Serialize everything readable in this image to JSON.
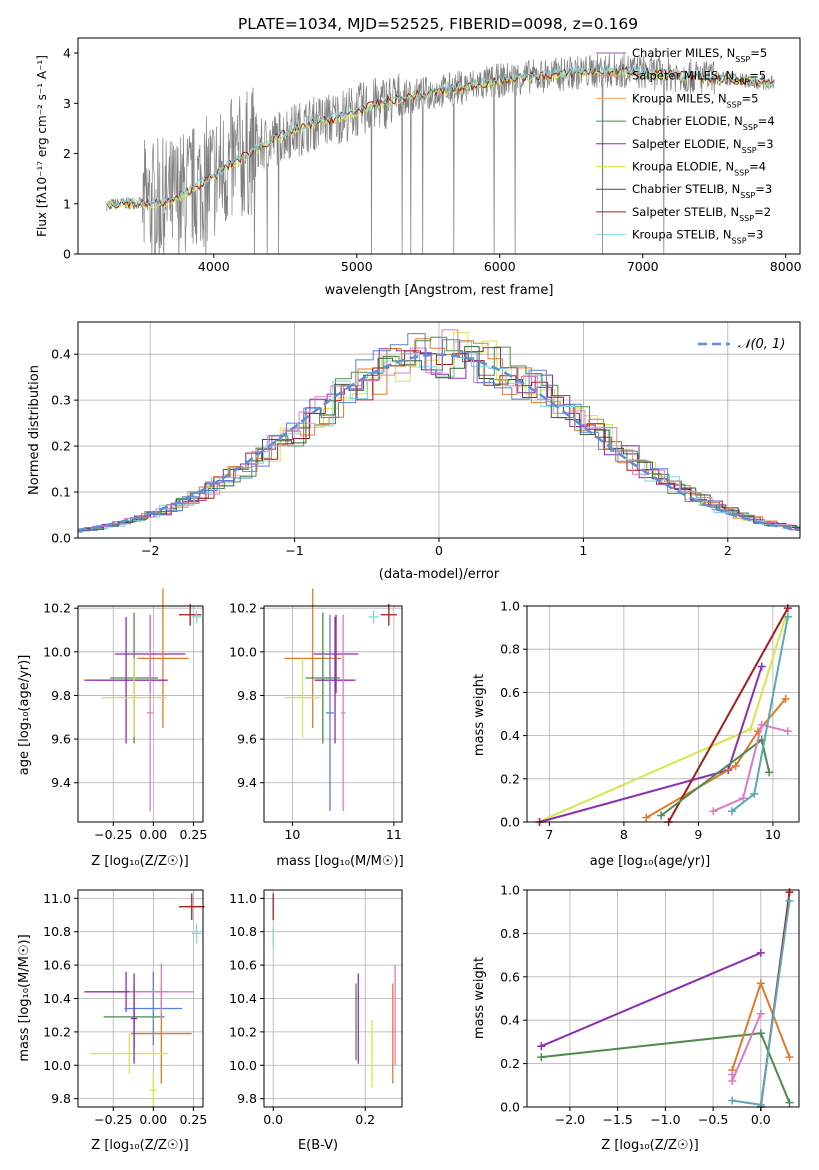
{
  "title": "PLATE=1034, MJD=52525, FIBERID=0098, z=0.169",
  "colors": {
    "chabrier_miles": "#9b59b6",
    "salpeter_miles": "#f08a4b",
    "kroupa_miles": "#f0a060",
    "chabrier_elodie": "#4e8b4e",
    "salpeter_elodie": "#8e2db0",
    "kroupa_elodie": "#d7e64a",
    "chabrier_stelib": "#3a5a3a",
    "salpeter_stelib": "#a31d1d",
    "kroupa_stelib": "#7fd6de",
    "data": "#808080",
    "normal": "#5b8fd9",
    "orange": "#e07b2e",
    "pink": "#e07bc0",
    "blue": "#5b7fd6",
    "teal": "#5aa8b8"
  },
  "spectrum": {
    "xlabel": "wavelength [Angstrom, rest frame]",
    "ylabel": "Flux [fλ10⁻¹⁷ erg cm⁻² s⁻¹ A⁻¹]",
    "xticks": [
      "4000",
      "5000",
      "6000",
      "7000",
      "8000"
    ],
    "yticks": [
      "0",
      "1",
      "2",
      "3",
      "4"
    ],
    "legend": [
      {
        "label": "Chabrier MILES, N",
        "sub": "SSP",
        "tail": "=5",
        "color": "#9b59b6"
      },
      {
        "label": "Salpeter MILES, N",
        "sub": "SSP",
        "tail": "=5",
        "color": "#f08a4b"
      },
      {
        "label": "Kroupa MILES, N",
        "sub": "SSP",
        "tail": "=5",
        "color": "#f0a060"
      },
      {
        "label": "Chabrier ELODIE, N",
        "sub": "SSP",
        "tail": "=4",
        "color": "#4e8b4e"
      },
      {
        "label": "Salpeter ELODIE, N",
        "sub": "SSP",
        "tail": "=3",
        "color": "#8e2db0"
      },
      {
        "label": "Kroupa ELODIE, N",
        "sub": "SSP",
        "tail": "=4",
        "color": "#d7e64a"
      },
      {
        "label": "Chabrier STELIB, N",
        "sub": "SSP",
        "tail": "=3",
        "color": "#3a5a3a"
      },
      {
        "label": "Salpeter STELIB, N",
        "sub": "SSP",
        "tail": "=2",
        "color": "#a31d1d"
      },
      {
        "label": "Kroupa STELIB, N",
        "sub": "SSP",
        "tail": "=3",
        "color": "#7fd6de"
      }
    ]
  },
  "residuals": {
    "xlabel": "(data-model)/error",
    "ylabel": "Normed distribution",
    "xticks": [
      "−2",
      "−1",
      "0",
      "1",
      "2"
    ],
    "yticks": [
      "0.0",
      "0.1",
      "0.2",
      "0.3",
      "0.4"
    ],
    "legend": "𝒩(0, 1)"
  },
  "panels": {
    "age_vs_z": {
      "xlabel": "Z [log₁₀(Z/Z☉)]",
      "ylabel": "age  [log₁₀(age/yr)]",
      "xticks": [
        "−0.25",
        "0.00",
        "0.25"
      ],
      "yticks": [
        "9.4",
        "9.6",
        "9.8",
        "10.0",
        "10.2"
      ]
    },
    "age_vs_mass": {
      "xlabel": "mass [log₁₀(M/M☉)]",
      "xticks": [
        "10",
        "11"
      ],
      "yticks": [
        "9.4",
        "9.6",
        "9.8",
        "10.0",
        "10.2"
      ]
    },
    "weight_vs_age": {
      "xlabel": "age  [log₁₀(age/yr)]",
      "ylabel": "mass weight",
      "xticks": [
        "7",
        "8",
        "9",
        "10"
      ],
      "yticks": [
        "0.0",
        "0.2",
        "0.4",
        "0.6",
        "0.8",
        "1.0"
      ]
    },
    "mass_vs_z": {
      "xlabel": "Z [log₁₀(Z/Z☉)]",
      "ylabel": "mass [log₁₀(M/M☉)]",
      "xticks": [
        "−0.25",
        "0.00",
        "0.25"
      ],
      "yticks": [
        "9.8",
        "10.0",
        "10.2",
        "10.4",
        "10.6",
        "10.8",
        "11.0"
      ]
    },
    "mass_vs_ebv": {
      "xlabel": "E(B-V)",
      "xticks": [
        "0.0",
        "0.2"
      ],
      "yticks": [
        "9.8",
        "10.0",
        "10.2",
        "10.4",
        "10.6",
        "10.8",
        "11.0"
      ]
    },
    "weight_vs_z": {
      "xlabel": "Z [log₁₀(Z/Z☉)]",
      "ylabel": "mass weight",
      "xticks": [
        "−2.0",
        "−1.5",
        "−1.0",
        "−0.5",
        "0.0"
      ],
      "yticks": [
        "0.0",
        "0.2",
        "0.4",
        "0.6",
        "0.8",
        "1.0"
      ]
    }
  },
  "chart_data": [
    {
      "type": "line",
      "title": "PLATE=1034, MJD=52525, FIBERID=0098, z=0.169",
      "xlabel": "wavelength [Angstrom, rest frame]",
      "ylabel": "Flux [fλ10⁻¹⁷ erg cm⁻² s⁻¹ A⁻¹]",
      "xlim": [
        3050,
        8100
      ],
      "ylim": [
        0,
        4.3
      ],
      "series": [
        {
          "name": "data",
          "x": [
            3250,
            3400,
            3550,
            3700,
            3850,
            4000,
            4150,
            4300,
            4500,
            4700,
            4900,
            5100,
            5300,
            5500,
            5700,
            5900,
            6100,
            6300,
            6500,
            6700,
            6900,
            7100,
            7300,
            7500,
            7700,
            7900
          ],
          "y": [
            0.98,
            1.02,
            1.0,
            1.05,
            1.3,
            1.55,
            1.85,
            2.1,
            2.4,
            2.6,
            2.75,
            2.95,
            3.1,
            3.2,
            3.3,
            3.4,
            3.5,
            3.55,
            3.6,
            3.65,
            3.65,
            3.6,
            3.55,
            3.5,
            3.45,
            3.4
          ]
        },
        {
          "name": "model",
          "x": [
            3250,
            3400,
            3550,
            3700,
            3850,
            4000,
            4150,
            4300,
            4500,
            4700,
            4900,
            5100,
            5300,
            5500,
            5700,
            5900,
            6100,
            6300,
            6500,
            6700,
            6900,
            7100,
            7300,
            7500,
            7700,
            7900
          ],
          "y": [
            0.95,
            1.0,
            1.0,
            1.05,
            1.3,
            1.55,
            1.85,
            2.1,
            2.4,
            2.6,
            2.75,
            2.95,
            3.1,
            3.2,
            3.3,
            3.4,
            3.5,
            3.55,
            3.6,
            3.65,
            3.65,
            3.6,
            3.55,
            3.5,
            3.45,
            3.4
          ]
        }
      ]
    },
    {
      "type": "line",
      "xlabel": "(data-model)/error",
      "ylabel": "Normed distribution",
      "xlim": [
        -2.5,
        2.5
      ],
      "ylim": [
        0,
        0.47
      ],
      "series": [
        {
          "name": "𝒩(0, 1)"
        }
      ]
    },
    {
      "type": "scatter",
      "xlabel": "age  [log₁₀(age/yr)]",
      "ylabel": "mass weight",
      "xlim": [
        6.7,
        10.35
      ],
      "ylim": [
        0,
        1.0
      ],
      "series": [
        {
          "x": [
            6.85,
            9.7,
            10.17
          ],
          "y": [
            0.0,
            0.43,
            0.95
          ]
        },
        {
          "x": [
            6.87,
            9.4,
            9.85
          ],
          "y": [
            0.0,
            0.24,
            0.72
          ]
        },
        {
          "x": [
            8.3,
            9.5,
            9.8,
            10.17
          ],
          "y": [
            0.02,
            0.26,
            0.42,
            0.57
          ]
        },
        {
          "x": [
            8.6,
            10.2
          ],
          "y": [
            0.0,
            0.99
          ]
        },
        {
          "x": [
            8.5,
            9.85,
            9.95
          ],
          "y": [
            0.03,
            0.38,
            0.23
          ]
        },
        {
          "x": [
            9.2,
            9.6,
            9.85,
            10.2
          ],
          "y": [
            0.05,
            0.11,
            0.45,
            0.42
          ]
        },
        {
          "x": [
            9.45,
            9.75,
            10.2
          ],
          "y": [
            0.05,
            0.13,
            0.95
          ]
        }
      ]
    },
    {
      "type": "scatter",
      "xlabel": "Z [log₁₀(Z/Z☉)]",
      "ylabel": "mass weight",
      "xlim": [
        -2.45,
        0.4
      ],
      "ylim": [
        0,
        1.0
      ],
      "series": [
        {
          "x": [
            -2.3,
            0.0
          ],
          "y": [
            0.28,
            0.71
          ]
        },
        {
          "x": [
            -2.3,
            0.0,
            0.3
          ],
          "y": [
            0.23,
            0.34,
            0.02
          ]
        },
        {
          "x": [
            -0.3,
            0.0,
            0.3
          ],
          "y": [
            0.17,
            0.57,
            0.23
          ]
        },
        {
          "x": [
            -0.3,
            -0.3,
            0.0
          ],
          "y": [
            0.15,
            0.12,
            0.43
          ]
        },
        {
          "x": [
            0.0,
            0.3
          ],
          "y": [
            0.0,
            0.99
          ]
        },
        {
          "x": [
            -0.3,
            0.0,
            0.3
          ],
          "y": [
            0.03,
            0.01,
            0.95
          ]
        }
      ]
    }
  ]
}
